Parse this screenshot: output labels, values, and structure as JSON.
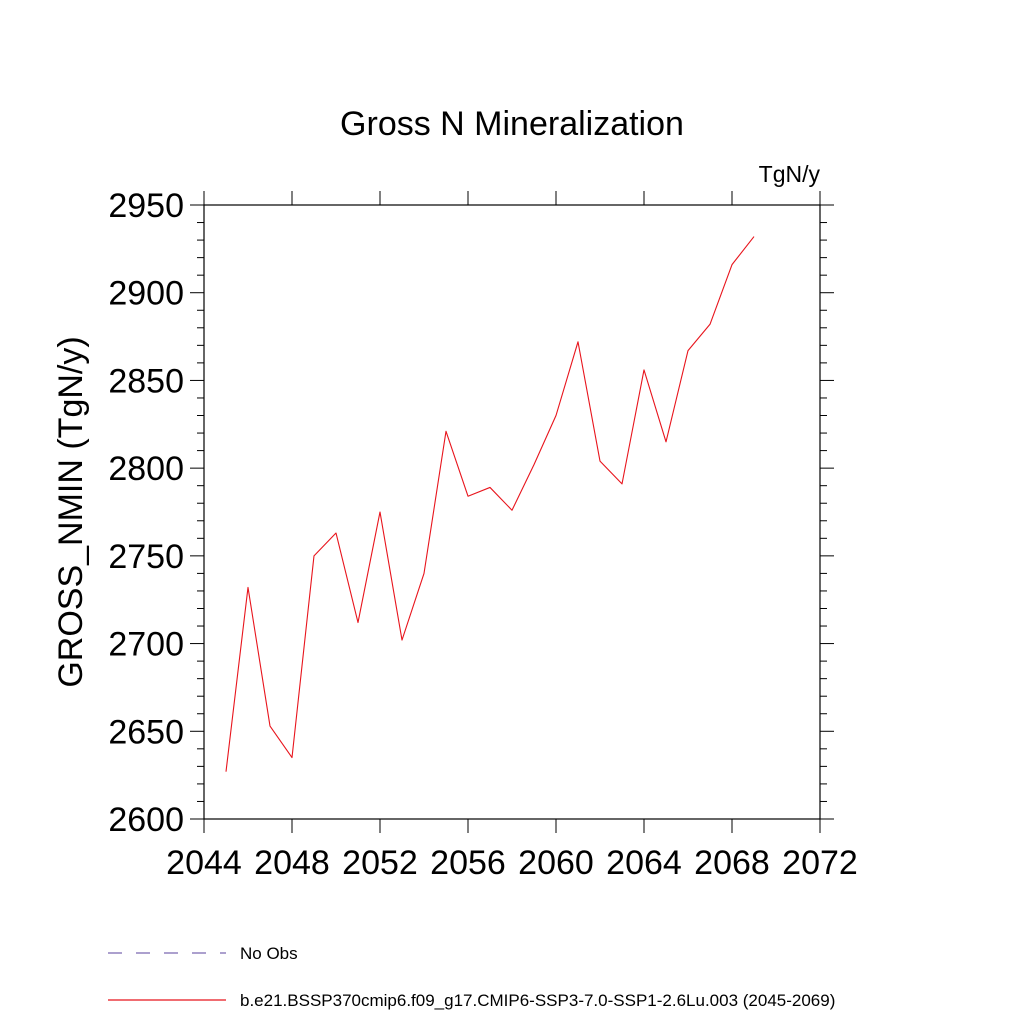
{
  "chart_data": {
    "type": "line",
    "title": "Gross N Mineralization",
    "units": "TgN/y",
    "xlabel": "",
    "ylabel": "GROSS_NMIN  (TgN/y)",
    "xlim": [
      2044,
      2072
    ],
    "ylim": [
      2600,
      2950
    ],
    "xticks": [
      2044,
      2048,
      2052,
      2056,
      2060,
      2064,
      2068,
      2072
    ],
    "yticks": [
      2600,
      2650,
      2700,
      2750,
      2800,
      2850,
      2900,
      2950
    ],
    "grid": false,
    "legend_position": "bottom",
    "series": [
      {
        "name": "No Obs",
        "color": "#7b68b0",
        "dash": "dashed",
        "x": [],
        "y": []
      },
      {
        "name": "b.e21.BSSP370cmip6.f09_g17.CMIP6-SSP3-7.0-SSP1-2.6Lu.003 (2045-2069)",
        "color": "#e8141c",
        "dash": "solid",
        "x": [
          2045,
          2046,
          2047,
          2048,
          2049,
          2050,
          2051,
          2052,
          2053,
          2054,
          2055,
          2056,
          2057,
          2058,
          2059,
          2060,
          2061,
          2062,
          2063,
          2064,
          2065,
          2066,
          2067,
          2068,
          2069
        ],
        "y": [
          2627,
          2732,
          2653,
          2635,
          2750,
          2763,
          2712,
          2775,
          2702,
          2740,
          2821,
          2784,
          2789,
          2776,
          2802,
          2830,
          2872,
          2804,
          2791,
          2856,
          2815,
          2867,
          2882,
          2916,
          2932
        ]
      }
    ]
  }
}
